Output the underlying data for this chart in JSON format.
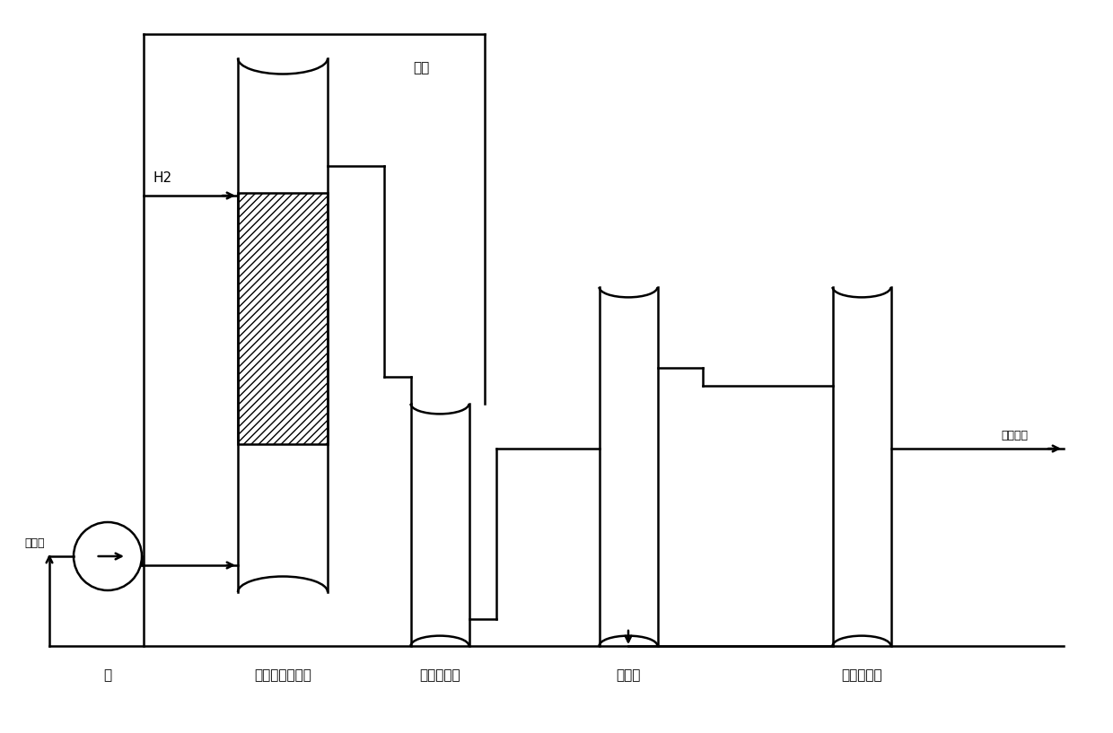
{
  "bg_color": "#ffffff",
  "line_color": "#000000",
  "labels": {
    "pump": "泵",
    "reactor": "催化加氢反应器",
    "separator": "高压分离罐",
    "evaporator": "蒸发器",
    "distillation": "减压蒸馏塔",
    "h2": "H2",
    "recycle_h2": "回氢",
    "feed": "己二腈",
    "product": "精己二胺"
  },
  "figsize": [
    12.4,
    8.17
  ],
  "dpi": 100
}
